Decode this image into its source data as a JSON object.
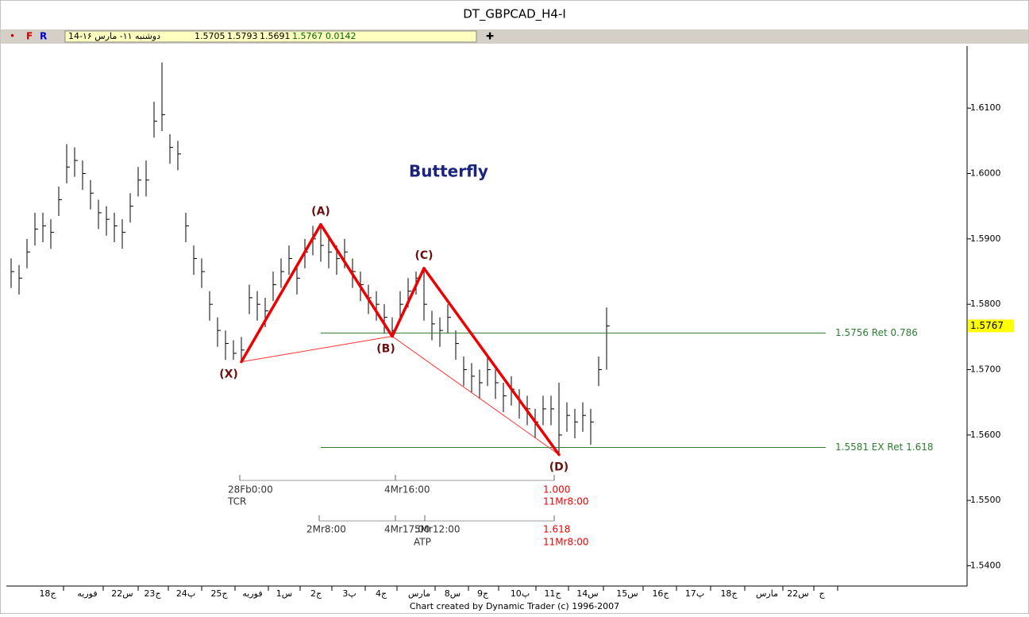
{
  "window_title": "DT_GBPCAD_H4-I",
  "info_bar": {
    "flags": [
      "•",
      "F",
      "R"
    ],
    "date": "14-۱۶ دوشنبه ۱۱- مارس",
    "values": [
      "1.5705",
      "1.5793",
      "1.5691",
      "1.5767",
      "0.0142"
    ],
    "plus": "✚"
  },
  "footer": "Chart created by Dynamic Trader  (c) 1996-2007",
  "chart_data": {
    "type": "ohlc",
    "title": "Butterfly",
    "xlim": [
      -0.6,
      120.4
    ],
    "ylim": [
      1.5369,
      1.6195
    ],
    "yticks": [
      {
        "value": 1.61,
        "label": "1.6100"
      },
      {
        "value": 1.6,
        "label": "1.6000"
      },
      {
        "value": 1.59,
        "label": "1.5900"
      },
      {
        "value": 1.58,
        "label": "1.5800"
      },
      {
        "value": 1.57,
        "label": "1.5700"
      },
      {
        "value": 1.56,
        "label": "1.5600"
      },
      {
        "value": 1.55,
        "label": "1.5500"
      },
      {
        "value": 1.54,
        "label": "1.5400"
      }
    ],
    "xticks": [
      {
        "value": 4.6,
        "label": "18ج"
      },
      {
        "value": 9.6,
        "label": "فوريه"
      },
      {
        "value": 14,
        "label": "22س"
      },
      {
        "value": 17.8,
        "label": "23ج"
      },
      {
        "value": 22,
        "label": "24پ"
      },
      {
        "value": 26.2,
        "label": "25ج"
      },
      {
        "value": 30.4,
        "label": "فوريه"
      },
      {
        "value": 34.4,
        "label": "1س"
      },
      {
        "value": 38.4,
        "label": "2ج"
      },
      {
        "value": 42.6,
        "label": "3پ"
      },
      {
        "value": 46.6,
        "label": "4ج"
      },
      {
        "value": 51.4,
        "label": "مارس"
      },
      {
        "value": 55.6,
        "label": "8س"
      },
      {
        "value": 59.4,
        "label": "9ج"
      },
      {
        "value": 64.1,
        "label": "10پ"
      },
      {
        "value": 68.2,
        "label": "11ج"
      },
      {
        "value": 72.6,
        "label": "14س"
      },
      {
        "value": 77.6,
        "label": "15س"
      },
      {
        "value": 81.8,
        "label": "16ج"
      },
      {
        "value": 86.1,
        "label": "17پ"
      },
      {
        "value": 90.4,
        "label": "18ج"
      },
      {
        "value": 95.2,
        "label": "مارس"
      },
      {
        "value": 99.1,
        "label": "22س"
      },
      {
        "value": 102.1,
        "label": "ج"
      }
    ],
    "high": [
      1.587,
      1.586,
      1.59,
      1.594,
      1.594,
      1.593,
      1.598,
      1.6045,
      1.604,
      1.602,
      1.599,
      1.596,
      1.595,
      1.594,
      1.593,
      1.597,
      1.601,
      1.602,
      1.611,
      1.617,
      1.606,
      1.605,
      1.594,
      1.589,
      1.587,
      1.582,
      1.578,
      1.576,
      1.5745,
      1.575,
      1.583,
      1.582,
      1.581,
      1.585,
      1.587,
      1.589,
      1.586,
      1.59,
      1.592,
      1.5922,
      1.59,
      1.589,
      1.59,
      1.587,
      1.585,
      1.583,
      1.582,
      1.58,
      1.578,
      1.582,
      1.584,
      1.585,
      1.5855,
      1.579,
      1.578,
      1.58,
      1.576,
      1.572,
      1.571,
      1.57,
      1.572,
      1.57,
      1.568,
      1.569,
      1.567,
      1.566,
      1.564,
      1.566,
      1.566,
      1.568,
      1.565,
      1.564,
      1.565,
      1.564,
      1.572,
      1.5795
    ],
    "low": [
      1.5825,
      1.5815,
      1.5855,
      1.589,
      1.5895,
      1.5885,
      1.5935,
      1.5985,
      1.5995,
      1.5975,
      1.5945,
      1.5915,
      1.5905,
      1.5895,
      1.5885,
      1.5925,
      1.5965,
      1.5965,
      1.6055,
      1.6065,
      1.6015,
      1.6005,
      1.5895,
      1.5845,
      1.5825,
      1.5775,
      1.5735,
      1.5715,
      1.5715,
      1.5712,
      1.5785,
      1.5775,
      1.5765,
      1.5805,
      1.5825,
      1.5845,
      1.5815,
      1.5855,
      1.5875,
      1.5865,
      1.5855,
      1.5845,
      1.5855,
      1.5825,
      1.5805,
      1.5785,
      1.5775,
      1.5755,
      1.5751,
      1.5775,
      1.5795,
      1.5815,
      1.5775,
      1.5745,
      1.5735,
      1.5755,
      1.5715,
      1.5675,
      1.5665,
      1.5655,
      1.5675,
      1.5655,
      1.5635,
      1.5645,
      1.5625,
      1.5615,
      1.5595,
      1.5615,
      1.5615,
      1.557,
      1.5605,
      1.5595,
      1.5605,
      1.5585,
      1.5675,
      1.57
    ],
    "close": [
      1.585,
      1.584,
      1.588,
      1.5915,
      1.592,
      1.591,
      1.596,
      1.601,
      1.602,
      1.6,
      1.597,
      1.594,
      1.593,
      1.592,
      1.591,
      1.595,
      1.599,
      1.599,
      1.608,
      1.609,
      1.604,
      1.603,
      1.592,
      1.587,
      1.585,
      1.58,
      1.576,
      1.574,
      1.5725,
      1.573,
      1.581,
      1.58,
      1.579,
      1.583,
      1.585,
      1.587,
      1.584,
      1.588,
      1.59,
      1.589,
      1.588,
      1.587,
      1.588,
      1.585,
      1.583,
      1.581,
      1.58,
      1.578,
      1.576,
      1.58,
      1.582,
      1.584,
      1.58,
      1.577,
      1.576,
      1.578,
      1.574,
      1.57,
      1.569,
      1.568,
      1.57,
      1.568,
      1.566,
      1.567,
      1.565,
      1.564,
      1.562,
      1.564,
      1.564,
      1.56,
      1.563,
      1.562,
      1.563,
      1.562,
      1.57,
      1.5767
    ],
    "pattern": [
      {
        "label": "(X)",
        "bar": 29,
        "price": 1.5712
      },
      {
        "label": "(A)",
        "bar": 39,
        "price": 1.5922
      },
      {
        "label": "(B)",
        "bar": 48,
        "price": 1.5751
      },
      {
        "label": "(C)",
        "bar": 52,
        "price": 1.5855
      },
      {
        "label": "(D)",
        "bar": 69,
        "price": 1.557
      }
    ],
    "levels": [
      {
        "value": 1.5756,
        "label": "1.5756 Ret 0.786"
      },
      {
        "value": 1.5581,
        "label": "1.5581 EX Ret 1.618"
      }
    ],
    "last_price": {
      "value": 1.5767,
      "label": "1.5767"
    },
    "time_projections": [
      "28Fb0:00",
      "TCR",
      "4Mr16:00",
      "1.000",
      "11Mr8:00",
      "2Mr8:00",
      "4Mr17:00",
      "5Mr12:00",
      "ATP",
      "1.618",
      "11Mr8:00"
    ]
  }
}
